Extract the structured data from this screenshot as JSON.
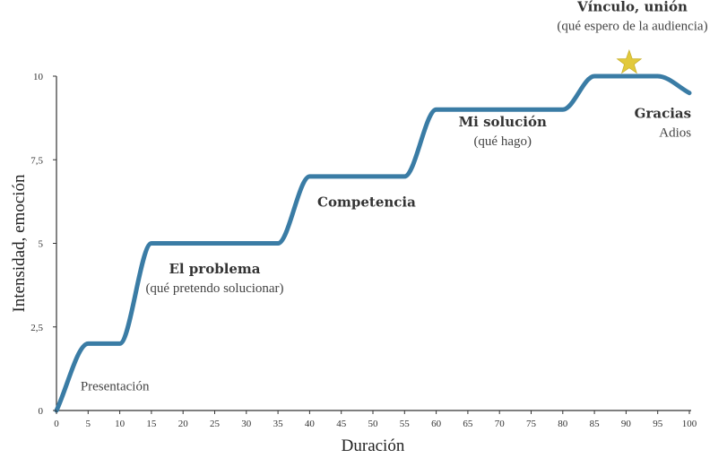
{
  "chart_data": {
    "type": "line",
    "xlabel": "Duración",
    "ylabel": "Intensidad, emoción",
    "xlim": [
      0,
      100
    ],
    "ylim": [
      0,
      10
    ],
    "x_ticks": [
      "0",
      "5",
      "10",
      "15",
      "20",
      "25",
      "30",
      "35",
      "40",
      "45",
      "50",
      "55",
      "60",
      "65",
      "70",
      "75",
      "80",
      "85",
      "90",
      "95",
      "100"
    ],
    "y_ticks": [
      "0",
      "2,5",
      "5",
      "7,5",
      "10"
    ],
    "line_color": "#3a7ca5",
    "star_color": "#e2c93b",
    "series": [
      {
        "x": [
          0,
          5,
          10,
          15,
          20,
          30,
          35,
          40,
          45,
          50,
          55,
          60,
          65,
          70,
          75,
          80,
          85,
          90,
          95,
          100
        ],
        "y": [
          0,
          2.0,
          2.0,
          5.0,
          5.0,
          5.0,
          5.0,
          7.0,
          7.0,
          7.0,
          7.0,
          9.0,
          9.0,
          9.0,
          9.0,
          9.0,
          10.0,
          10.0,
          10.0,
          9.5
        ]
      }
    ],
    "star": {
      "x": 90.5,
      "y": 10.4
    },
    "annotations": [
      {
        "id": "presentacion",
        "bold": "",
        "sub": "Presentación",
        "x": 3.8,
        "y": 0.6,
        "align": "start"
      },
      {
        "id": "problema",
        "bold": "El problema",
        "sub": "(qué pretendo solucionar)",
        "x": 25,
        "y": 4.1,
        "align": "middle"
      },
      {
        "id": "competencia",
        "bold": "Competencia",
        "sub": "",
        "x": 49,
        "y": 6.1,
        "align": "middle"
      },
      {
        "id": "solucion",
        "bold": "Mi solución",
        "sub": "(qué hago)",
        "x": 70.5,
        "y": 8.5,
        "align": "middle"
      },
      {
        "id": "vinculo",
        "bold": "Vínculo, unión",
        "sub": "(qué espero de la audiencia)",
        "x": 91,
        "y": 11.95,
        "align": "middle"
      },
      {
        "id": "gracias",
        "bold": "Gracias",
        "sub": "Adios",
        "x": 100.3,
        "y": 8.75,
        "align": "end"
      }
    ]
  }
}
